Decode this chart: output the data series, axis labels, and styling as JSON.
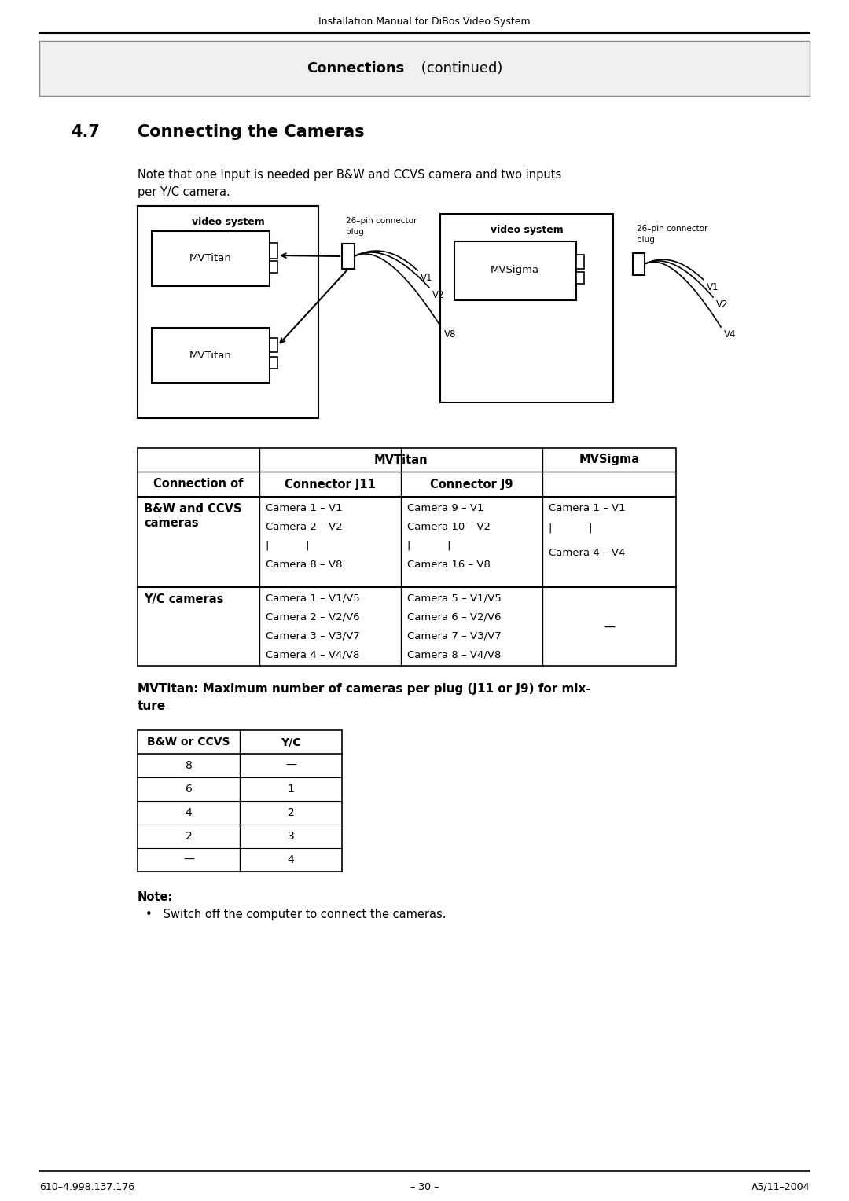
{
  "page_title": "Installation Manual for DiBos Video System",
  "footer_left": "610–4.998.137.176",
  "footer_center": "– 30 –",
  "footer_right": "A5/11–2004",
  "bg_color": "#ffffff",
  "header_bg": "#efefef"
}
